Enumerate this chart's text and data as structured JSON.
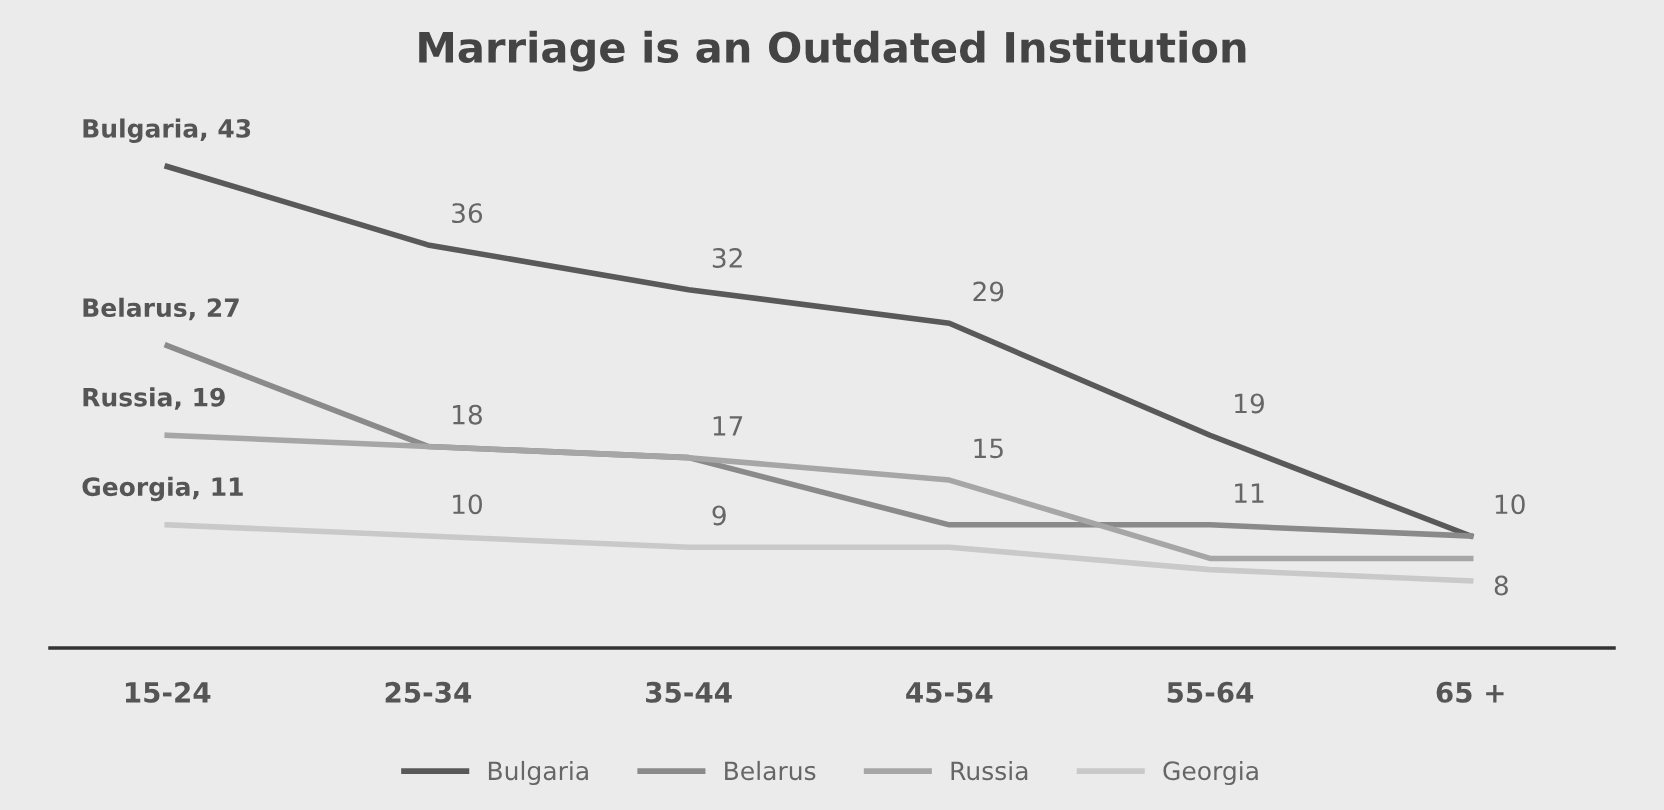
{
  "chart_data": {
    "type": "line",
    "title": "Marriage is an Outdated Institution",
    "categories": [
      "15-24",
      "25-34",
      "35-44",
      "45-54",
      "55-64",
      "65 +"
    ],
    "series": [
      {
        "name": "Bulgaria",
        "color": "#595959",
        "values": [
          43,
          36,
          32,
          29,
          19,
          10
        ],
        "value_labels": [
          "Bulgaria, 43",
          "36",
          "32",
          "29",
          "19",
          "10"
        ]
      },
      {
        "name": "Belarus",
        "color": "#8a8a8a",
        "values": [
          27,
          18,
          17,
          11,
          11,
          10
        ],
        "value_labels": [
          "Belarus, 27",
          "18",
          null,
          null,
          "11",
          null
        ]
      },
      {
        "name": "Russia",
        "color": "#a6a6a6",
        "values": [
          19,
          18,
          17,
          15,
          8,
          8
        ],
        "value_labels": [
          "Russia, 19",
          null,
          "17",
          "15",
          null,
          "8"
        ]
      },
      {
        "name": "Georgia",
        "color": "#c9c9c9",
        "values": [
          11,
          10,
          9,
          9,
          7,
          6
        ],
        "value_labels": [
          "Georgia, 11",
          "10",
          "9",
          null,
          null,
          null
        ]
      }
    ],
    "legend": "bottom",
    "marker": "none",
    "line_style": "solid"
  }
}
